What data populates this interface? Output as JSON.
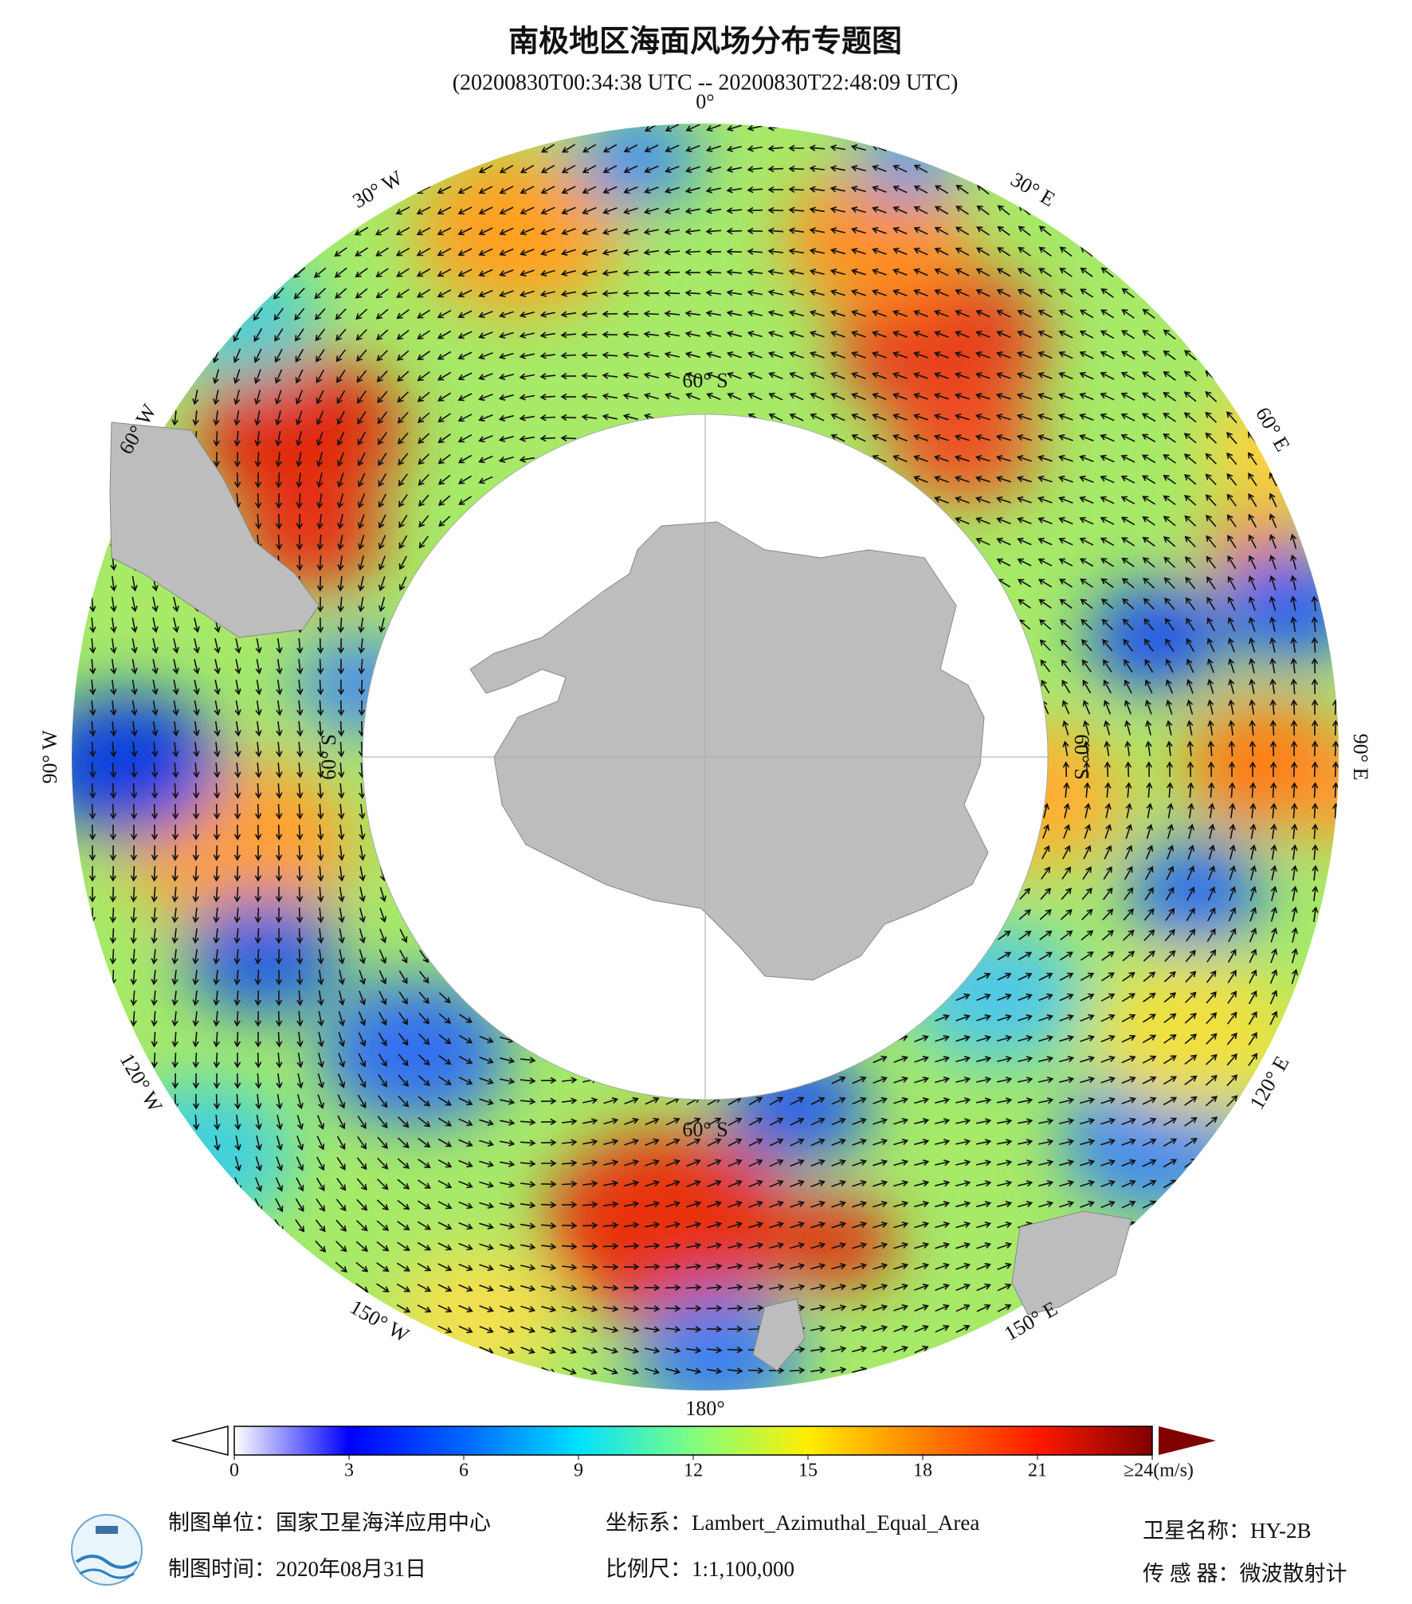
{
  "header": {
    "title": "南极地区海面风场分布专题图",
    "subtitle": "(20200830T00:34:38 UTC -- 20200830T22:48:09 UTC)"
  },
  "map": {
    "longitude_labels": [
      "0°",
      "30° E",
      "60° E",
      "90° E",
      "120° E",
      "150° E",
      "180°",
      "150° W",
      "120° W",
      "90° W",
      "60° W",
      "30° W"
    ],
    "latitude_label": "60° S"
  },
  "colorbar": {
    "range": [
      0,
      24
    ],
    "ticks": [
      0,
      3,
      6,
      9,
      12,
      15,
      18,
      21,
      {
        "value": 24,
        "label": "≥24(m/s)"
      }
    ],
    "colors": [
      "#ffffff",
      "#0000ff",
      "#0066ff",
      "#00e0ff",
      "#80ff80",
      "#ffee00",
      "#ff8000",
      "#ff1a00",
      "#800000"
    ]
  },
  "footer": {
    "unit": "制图单位：国家卫星海洋应用中心",
    "date": "制图时间：2020年08月31日",
    "crs": "坐标系：Lambert_Azimuthal_Equal_Area",
    "scale": "比例尺：1:1,100,000",
    "satellite": "卫星名称：HY-2B",
    "sensor": "传 感 器：微波散射计"
  }
}
